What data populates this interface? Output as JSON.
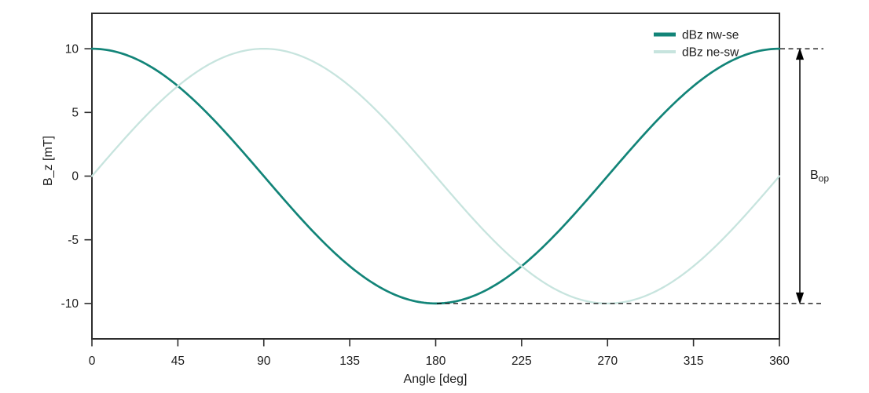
{
  "page": {
    "background": "#ffffff"
  },
  "chart_data": {
    "type": "line",
    "title": "",
    "xlabel": "Angle [deg]",
    "ylabel": "B_z [mT]",
    "xlim": [
      0,
      360
    ],
    "ylim": [
      -12.78,
      12.78
    ],
    "xticks": [
      0,
      45,
      90,
      135,
      180,
      225,
      270,
      315,
      360
    ],
    "yticks": [
      10,
      5,
      0,
      -5,
      -10
    ],
    "grid": false,
    "legend": {
      "position": "upper right",
      "entries": [
        "dBz nw-se",
        "dBz ne-sw"
      ]
    },
    "x_sample_deg": [
      0,
      45,
      90,
      135,
      180,
      225,
      270,
      315,
      360
    ],
    "series": [
      {
        "name": "dBz nw-se",
        "color": "#128478",
        "line_width": 2.7,
        "legend_swatch_width": 5,
        "amplitude_mT": 10,
        "phase_deg": 90,
        "values": [
          10,
          7.07,
          0,
          -7.07,
          -10,
          -7.07,
          0,
          7.07,
          10
        ]
      },
      {
        "name": "dBz ne-sw",
        "color": "#c7e4de",
        "line_width": 2.3,
        "legend_swatch_width": 4,
        "amplitude_mT": 10,
        "phase_deg": 0,
        "values": [
          0,
          7.07,
          10,
          7.07,
          0,
          -7.07,
          -10,
          -7.07,
          0
        ]
      }
    ],
    "annotation": {
      "label": "B",
      "label_sub": "op",
      "spans_from_mT": 10,
      "spans_to_mT": -10
    }
  },
  "style": {
    "axis_color": "#2e2e2e",
    "text_color": "#1c1c1c",
    "annotation_color": "#000000"
  }
}
